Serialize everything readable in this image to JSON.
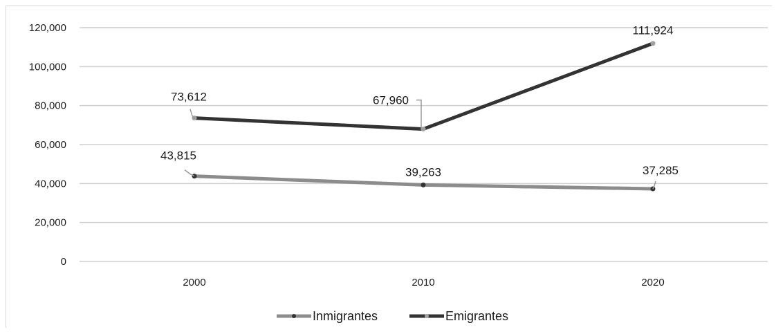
{
  "chart_data": {
    "type": "line",
    "title": "",
    "xlabel": "",
    "ylabel": "",
    "categories": [
      "2000",
      "2010",
      "2020"
    ],
    "ylim": [
      0,
      120000
    ],
    "yticks": [
      0,
      20000,
      40000,
      60000,
      80000,
      100000,
      120000
    ],
    "ytick_labels": [
      "0",
      "20,000",
      "40,000",
      "60,000",
      "80,000",
      "100,000",
      "120,000"
    ],
    "grid": true,
    "legend_position": "bottom-center",
    "series": [
      {
        "name": "Inmigrantes",
        "color": "#8c8c8c",
        "marker_color": "#333333",
        "values": [
          43815,
          39263,
          37285
        ],
        "labels": [
          "43,815",
          "39,263",
          "37,285"
        ]
      },
      {
        "name": "Emigrantes",
        "color": "#333333",
        "marker_color": "#a0a0a0",
        "values": [
          73612,
          67960,
          111924
        ],
        "labels": [
          "73,612",
          "67,960",
          "111,924"
        ]
      }
    ]
  }
}
